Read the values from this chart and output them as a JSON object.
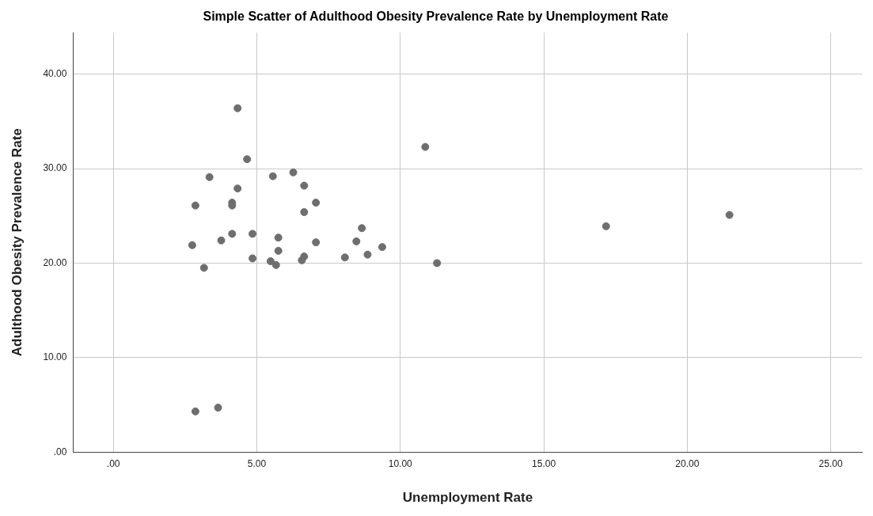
{
  "chart_data": {
    "type": "scatter",
    "title": "Simple Scatter of Adulthood Obesity Prevalence Rate by Unemployment Rate",
    "xlabel": "Unemployment Rate",
    "ylabel": "Adulthood Obesity Prevalence Rate",
    "x": [
      2.75,
      2.86,
      2.86,
      3.16,
      3.35,
      3.65,
      3.76,
      4.14,
      4.14,
      4.14,
      4.33,
      4.33,
      4.66,
      4.85,
      4.85,
      5.48,
      5.56,
      5.67,
      5.75,
      5.75,
      6.27,
      6.65,
      6.65,
      6.65,
      6.57,
      7.06,
      7.06,
      8.07,
      8.47,
      8.66,
      8.86,
      9.37,
      10.87,
      11.28,
      17.17,
      21.47
    ],
    "values": [
      21.9,
      26.1,
      4.3,
      19.5,
      29.1,
      4.7,
      22.4,
      23.1,
      26.4,
      26.1,
      27.9,
      36.4,
      31.0,
      23.1,
      20.5,
      20.2,
      29.2,
      19.8,
      22.7,
      21.3,
      29.6,
      28.2,
      25.4,
      20.7,
      20.3,
      26.4,
      22.2,
      20.6,
      22.3,
      23.7,
      20.9,
      21.7,
      32.3,
      20.0,
      23.9,
      25.1
    ],
    "color": "#6e6e6e",
    "marker": "circle",
    "xlim": [
      -1.4,
      26.1
    ],
    "xticks": [
      {
        "value": 0,
        "label": ".00"
      },
      {
        "value": 5,
        "label": "5.00"
      },
      {
        "value": 10,
        "label": "10.00"
      },
      {
        "value": 15,
        "label": "15.00"
      },
      {
        "value": 20,
        "label": "20.00"
      },
      {
        "value": 25,
        "label": "25.00"
      }
    ],
    "ylim": [
      0,
      44.4
    ],
    "yticks": [
      {
        "value": 0,
        "label": ".00"
      },
      {
        "value": 10,
        "label": "10.00"
      },
      {
        "value": 20,
        "label": "20.00"
      },
      {
        "value": 30,
        "label": "30.00"
      },
      {
        "value": 40,
        "label": "40.00"
      }
    ],
    "grid": true
  }
}
